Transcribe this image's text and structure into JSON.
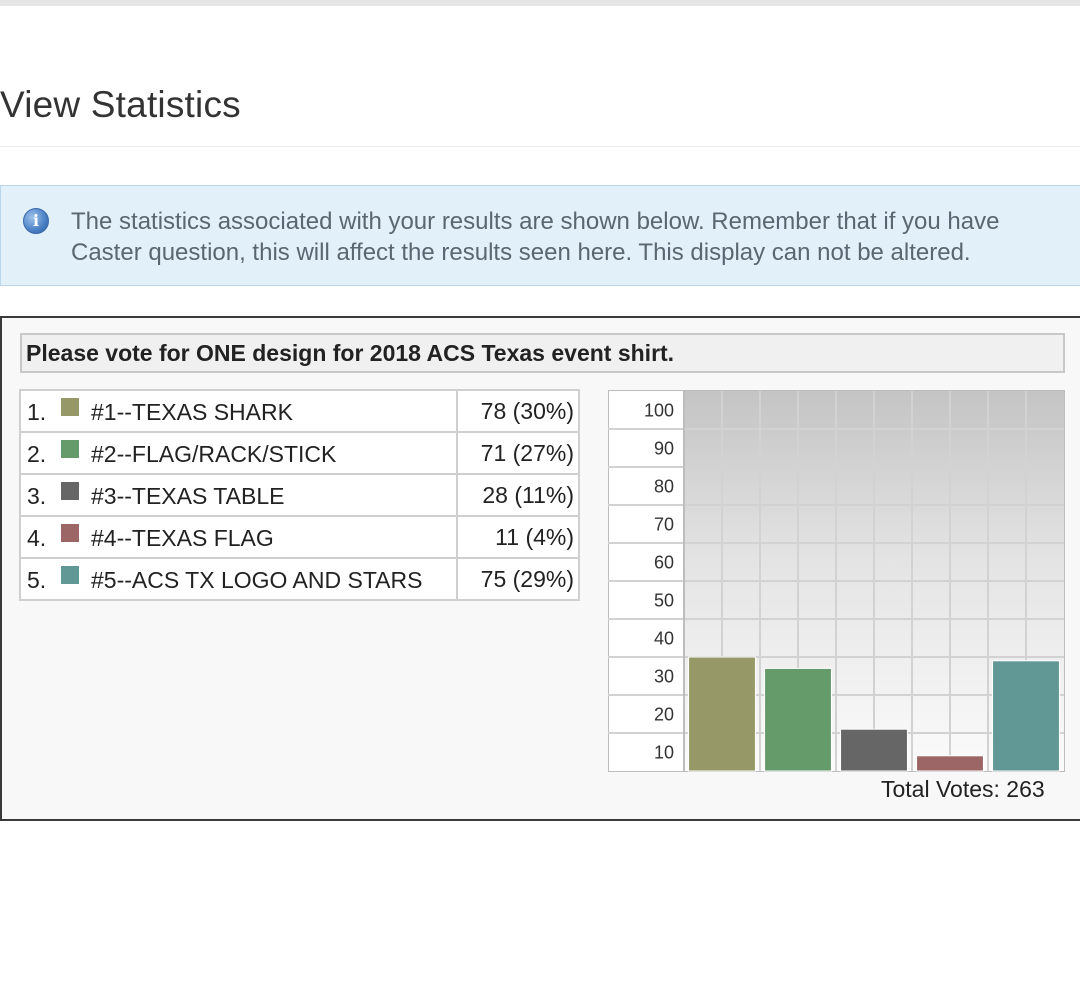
{
  "page": {
    "title": "View Statistics"
  },
  "info": {
    "icon": "info-icon",
    "line1": "The statistics associated with your results are shown below. Remember that if you have",
    "line2": "Caster question, this will affect the results seen here. This display can not be altered."
  },
  "poll": {
    "question": "Please vote for ONE design for 2018 ACS Texas event shirt.",
    "options": [
      {
        "rank": "1.",
        "label": "#1--TEXAS SHARK",
        "result": "78 (30%)",
        "color": "#979868"
      },
      {
        "rank": "2.",
        "label": "#2--FLAG/RACK/STICK",
        "result": "71 (27%)",
        "color": "#659a6a"
      },
      {
        "rank": "3.",
        "label": "#3--TEXAS TABLE",
        "result": "28 (11%)",
        "color": "#666666"
      },
      {
        "rank": "4.",
        "label": "#4--TEXAS FLAG",
        "result": "11 (4%)",
        "color": "#9c6666"
      },
      {
        "rank": "5.",
        "label": "#5--ACS TX LOGO AND STARS",
        "result": "75 (29%)",
        "color": "#619896"
      }
    ],
    "total_votes": "Total Votes: 263"
  },
  "chart_data": {
    "type": "bar",
    "categories": [
      "#1--TEXAS SHARK",
      "#2--FLAG/RACK/STICK",
      "#3--TEXAS TABLE",
      "#4--TEXAS FLAG",
      "#5--ACS TX LOGO AND STARS"
    ],
    "values": [
      30,
      27,
      11,
      4,
      29
    ],
    "colors": [
      "#979868",
      "#659a6a",
      "#666666",
      "#9c6666",
      "#619896"
    ],
    "y_ticks": [
      "100",
      "90",
      "80",
      "70",
      "60",
      "50",
      "40",
      "30",
      "20",
      "10"
    ],
    "ylim": [
      0,
      100
    ],
    "grid": true
  }
}
